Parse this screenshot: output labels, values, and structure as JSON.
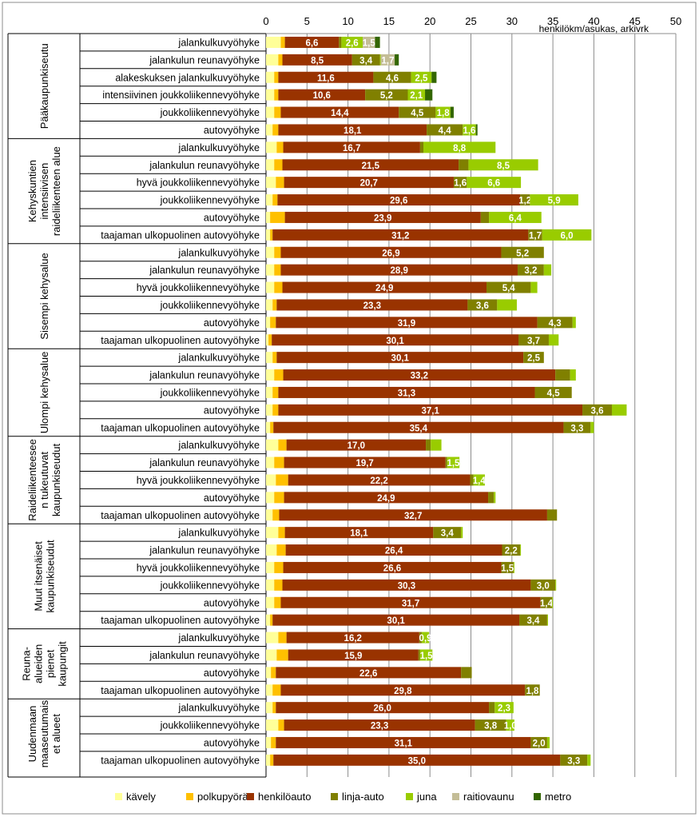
{
  "chart_data": {
    "type": "bar",
    "orientation": "horizontal",
    "stacked": true,
    "unit_label": "henkilökm/asukas, arkivrk",
    "xlim": [
      0,
      50
    ],
    "x_ticks": [
      0,
      5,
      10,
      15,
      20,
      25,
      30,
      35,
      40,
      45,
      50
    ],
    "grid": true,
    "legend_position": "bottom",
    "series": [
      {
        "key": "walk",
        "name": "kävely",
        "color": "#ffff99"
      },
      {
        "key": "bike",
        "name": "polkupyörä",
        "color": "#ffc000"
      },
      {
        "key": "car",
        "name": "henkilöauto",
        "color": "#993300"
      },
      {
        "key": "bus",
        "name": "linja-auto",
        "color": "#808000"
      },
      {
        "key": "train",
        "name": "juna",
        "color": "#99cc00"
      },
      {
        "key": "tram",
        "name": "raitiovaunu",
        "color": "#c4bd97"
      },
      {
        "key": "metro",
        "name": "metro",
        "color": "#336600"
      }
    ],
    "groups": [
      {
        "label_lines": [
          "Pääkaupunkiseutu"
        ],
        "rows": [
          {
            "label": "jalankulkuvyöhyke",
            "values": [
              1.8,
              0.5,
              6.6,
              0.3,
              2.6,
              1.5,
              0.6
            ],
            "labels": [
              "",
              "",
              "6,6",
              "",
              "2,6",
              "1,5",
              ""
            ]
          },
          {
            "label": "jalankulun reunavyöhyke",
            "values": [
              1.5,
              0.5,
              8.5,
              3.4,
              0.1,
              1.7,
              0.5
            ],
            "labels": [
              "",
              "",
              "8,5",
              "3,4",
              "",
              "1,7",
              ""
            ]
          },
          {
            "label": "alakeskuksen jalankulkuvyöhyke",
            "values": [
              1.0,
              0.5,
              11.6,
              4.6,
              2.5,
              0.0,
              0.6
            ],
            "labels": [
              "",
              "",
              "11,6",
              "4,6",
              "2,5",
              "",
              ""
            ]
          },
          {
            "label": "intensiivinen joukkoliikennevyöhyke",
            "values": [
              1.0,
              0.5,
              10.6,
              5.2,
              2.1,
              0.0,
              0.9
            ],
            "labels": [
              "",
              "",
              "10,6",
              "5,2",
              "2,1",
              "",
              ""
            ]
          },
          {
            "label": "joukkoliikennevyöhyke",
            "values": [
              1.0,
              0.8,
              14.4,
              4.5,
              1.8,
              0.0,
              0.4
            ],
            "labels": [
              "",
              "",
              "14,4",
              "4,5",
              "1,8",
              "",
              ""
            ]
          },
          {
            "label": "autovyöhyke",
            "values": [
              0.8,
              0.7,
              18.1,
              4.4,
              1.6,
              0.0,
              0.2
            ],
            "labels": [
              "",
              "",
              "18,1",
              "4,4",
              "1,6",
              "",
              ""
            ]
          }
        ]
      },
      {
        "label_lines": [
          "Kehyskuntien",
          "intensiivisen",
          "raideliikenteen alue"
        ],
        "rows": [
          {
            "label": "jalankulkuvyöhyke",
            "values": [
              1.3,
              0.8,
              16.7,
              0.4,
              8.8,
              0.0,
              0.0
            ],
            "labels": [
              "",
              "",
              "16,7",
              "",
              "8,8",
              "",
              ""
            ]
          },
          {
            "label": "jalankulun reunavyöhyke",
            "values": [
              1.0,
              1.0,
              21.5,
              1.2,
              8.5,
              0.0,
              0.0
            ],
            "labels": [
              "",
              "",
              "21,5",
              "",
              "8,5",
              "",
              ""
            ]
          },
          {
            "label": "hyvä joukkoliikennevyöhyke",
            "values": [
              1.2,
              1.0,
              20.7,
              1.6,
              6.6,
              0.0,
              0.0
            ],
            "labels": [
              "",
              "",
              "20,7",
              "1,6",
              "6,6",
              "",
              ""
            ]
          },
          {
            "label": "joukkoliikennevyöhyke",
            "values": [
              0.8,
              0.6,
              29.6,
              1.2,
              5.9,
              0.0,
              0.0
            ],
            "labels": [
              "",
              "",
              "29,6",
              "1,2",
              "5,9",
              "",
              ""
            ]
          },
          {
            "label": "autovyöhyke",
            "values": [
              0.5,
              1.8,
              23.9,
              1.0,
              6.4,
              0.0,
              0.0
            ],
            "labels": [
              "",
              "",
              "23,9",
              "",
              "6,4",
              "",
              ""
            ]
          },
          {
            "label": "taajaman ulkopuolinen autovyöhyke",
            "values": [
              0.5,
              0.3,
              31.2,
              1.7,
              6.0,
              0.0,
              0.0
            ],
            "labels": [
              "",
              "",
              "31,2",
              "1,7",
              "6,0",
              "",
              ""
            ]
          }
        ]
      },
      {
        "label_lines": [
          "Sisempi kehysalue"
        ],
        "rows": [
          {
            "label": "jalankulkuvyöhyke",
            "values": [
              1.0,
              0.8,
              26.9,
              5.2,
              0.0,
              0.0,
              0.0
            ],
            "labels": [
              "",
              "",
              "26,9",
              "5,2",
              "",
              "",
              ""
            ]
          },
          {
            "label": "jalankulun reunavyöhyke",
            "values": [
              1.0,
              0.8,
              28.9,
              3.2,
              0.9,
              0.0,
              0.0
            ],
            "labels": [
              "",
              "",
              "28,9",
              "3,2",
              "",
              "",
              ""
            ]
          },
          {
            "label": "hyvä joukkoliikennevyöhyke",
            "values": [
              1.0,
              1.0,
              24.9,
              5.4,
              0.8,
              0.0,
              0.0
            ],
            "labels": [
              "",
              "",
              "24,9",
              "5,4",
              "",
              "",
              ""
            ]
          },
          {
            "label": "joukkoliikennevyöhyke",
            "values": [
              0.8,
              0.5,
              23.3,
              3.6,
              2.4,
              0.0,
              0.0
            ],
            "labels": [
              "",
              "",
              "23,3",
              "3,6",
              "",
              "",
              ""
            ]
          },
          {
            "label": "autovyöhyke",
            "values": [
              0.5,
              0.7,
              31.9,
              4.3,
              0.4,
              0.0,
              0.0
            ],
            "labels": [
              "",
              "",
              "31,9",
              "4,3",
              "",
              "",
              ""
            ]
          },
          {
            "label": "taajaman ulkopuolinen autovyöhyke",
            "values": [
              0.3,
              0.4,
              30.1,
              3.7,
              1.2,
              0.0,
              0.0
            ],
            "labels": [
              "",
              "",
              "30,1",
              "3,7",
              "",
              "",
              ""
            ]
          }
        ]
      },
      {
        "label_lines": [
          "Ulompi kehysalue"
        ],
        "rows": [
          {
            "label": "jalankulkuvyöhyke",
            "values": [
              0.8,
              0.5,
              30.1,
              2.5,
              0.0,
              0.0,
              0.0
            ],
            "labels": [
              "",
              "",
              "30,1",
              "2,5",
              "",
              "",
              ""
            ]
          },
          {
            "label": "jalankulun reunavyöhyke",
            "values": [
              1.0,
              1.1,
              33.2,
              1.8,
              0.7,
              0.0,
              0.0
            ],
            "labels": [
              "",
              "",
              "33,2",
              "",
              "",
              "",
              ""
            ]
          },
          {
            "label": "joukkoliikennevyöhyke",
            "values": [
              0.8,
              0.7,
              31.3,
              4.5,
              0.0,
              0.0,
              0.0
            ],
            "labels": [
              "",
              "",
              "31,3",
              "4,5",
              "",
              "",
              ""
            ]
          },
          {
            "label": "autovyöhyke",
            "values": [
              0.8,
              0.7,
              37.1,
              3.6,
              1.8,
              0.0,
              0.0
            ],
            "labels": [
              "",
              "",
              "37,1",
              "3,6",
              "",
              "",
              ""
            ]
          },
          {
            "label": "taajaman ulkopuolinen autovyöhyke",
            "values": [
              0.5,
              0.4,
              35.4,
              3.3,
              0.4,
              0.0,
              0.0
            ],
            "labels": [
              "",
              "",
              "35,4",
              "3,3",
              "",
              "",
              ""
            ]
          }
        ]
      },
      {
        "label_lines": [
          "Raideliikenteesee",
          "n tukeutuvat",
          "kaupunkiseudut"
        ],
        "rows": [
          {
            "label": "jalankulkuvyöhyke",
            "values": [
              1.5,
              1.0,
              17.0,
              0.6,
              1.3,
              0.0,
              0.0
            ],
            "labels": [
              "",
              "",
              "17,0",
              "",
              "",
              "",
              ""
            ]
          },
          {
            "label": "jalankulun reunavyöhyke",
            "values": [
              1.0,
              1.2,
              19.7,
              0.2,
              1.5,
              0.0,
              0.0
            ],
            "labels": [
              "",
              "",
              "19,7",
              "",
              "1,5",
              "",
              ""
            ]
          },
          {
            "label": "hyvä joukkoliikennevyöhyke",
            "values": [
              1.2,
              1.5,
              22.2,
              0.4,
              1.4,
              0.0,
              0.0
            ],
            "labels": [
              "",
              "",
              "22,2",
              "",
              "1,4",
              "",
              ""
            ]
          },
          {
            "label": "autovyöhyke",
            "values": [
              1.0,
              1.2,
              24.9,
              0.7,
              0.2,
              0.0,
              0.0
            ],
            "labels": [
              "",
              "",
              "24,9",
              "",
              "",
              "",
              ""
            ]
          },
          {
            "label": "taajaman ulkopuolinen autovyöhyke",
            "values": [
              0.8,
              0.8,
              32.7,
              1.2,
              0.0,
              0.0,
              0.0
            ],
            "labels": [
              "",
              "",
              "32,7",
              "",
              "",
              "",
              ""
            ]
          }
        ]
      },
      {
        "label_lines": [
          "Muut itsenäiset",
          "kaupunkiseudut"
        ],
        "rows": [
          {
            "label": "jalankulkuvyöhyke",
            "values": [
              1.5,
              0.8,
              18.1,
              3.4,
              0.2,
              0.0,
              0.0
            ],
            "labels": [
              "",
              "",
              "18,1",
              "3,4",
              "",
              "",
              ""
            ]
          },
          {
            "label": "jalankulun reunavyöhyke",
            "values": [
              1.3,
              1.1,
              26.4,
              2.2,
              0.1,
              0.0,
              0.0
            ],
            "labels": [
              "",
              "",
              "26,4",
              "2,2",
              "",
              "",
              ""
            ]
          },
          {
            "label": "hyvä joukkoliikennevyöhyke",
            "values": [
              1.0,
              1.1,
              26.6,
              1.5,
              0.1,
              0.0,
              0.0
            ],
            "labels": [
              "",
              "",
              "26,6",
              "1,5",
              "",
              "",
              ""
            ]
          },
          {
            "label": "joukkoliikennevyöhyke",
            "values": [
              1.0,
              1.0,
              30.3,
              3.0,
              0.1,
              0.0,
              0.0
            ],
            "labels": [
              "",
              "",
              "30,3",
              "3,0",
              "",
              "",
              ""
            ]
          },
          {
            "label": "autovyöhyke",
            "values": [
              1.0,
              0.8,
              31.7,
              1.4,
              0.1,
              0.0,
              0.0
            ],
            "labels": [
              "",
              "",
              "31,7",
              "1,4",
              "",
              "",
              ""
            ]
          },
          {
            "label": "taajaman ulkopuolinen autovyöhyke",
            "values": [
              0.5,
              0.3,
              30.1,
              3.4,
              0.1,
              0.0,
              0.0
            ],
            "labels": [
              "",
              "",
              "30,1",
              "3,4",
              "",
              "",
              ""
            ]
          }
        ]
      },
      {
        "label_lines": [
          "Reuna-",
          "alueiden",
          "pienet",
          "kaupungit"
        ],
        "rows": [
          {
            "label": "jalankulkuvyöhyke",
            "values": [
              1.5,
              1.0,
              16.2,
              0.3,
              0.9,
              0.0,
              0.0
            ],
            "labels": [
              "",
              "",
              "16,2",
              "",
              "0,9",
              "",
              ""
            ]
          },
          {
            "label": "jalankulun reunavyöhyke",
            "values": [
              1.3,
              1.4,
              15.9,
              0.2,
              1.5,
              0.0,
              0.0
            ],
            "labels": [
              "",
              "",
              "15,9",
              "",
              "1,5",
              "",
              ""
            ]
          },
          {
            "label": "autovyöhyke",
            "values": [
              0.6,
              0.6,
              22.6,
              1.3,
              0.0,
              0.0,
              0.0
            ],
            "labels": [
              "",
              "",
              "22,6",
              "",
              "",
              "",
              ""
            ]
          },
          {
            "label": "taajaman ulkopuolinen autovyöhyke",
            "values": [
              0.8,
              1.0,
              29.8,
              1.8,
              0.0,
              0.0,
              0.0
            ],
            "labels": [
              "",
              "",
              "29,8",
              "1,8",
              "",
              "",
              ""
            ]
          }
        ]
      },
      {
        "label_lines": [
          "Uudenmaan",
          "maaseutumais",
          "et alueet"
        ],
        "rows": [
          {
            "label": "jalankulkuvyöhyke",
            "values": [
              0.8,
              0.4,
              26.0,
              0.7,
              2.3,
              0.0,
              0.0
            ],
            "labels": [
              "",
              "",
              "26,0",
              "",
              "2,3",
              "",
              ""
            ]
          },
          {
            "label": "joukkoliikennevyöhyke",
            "values": [
              1.5,
              0.7,
              23.3,
              3.8,
              1.0,
              0.0,
              0.0
            ],
            "labels": [
              "",
              "",
              "23,3",
              "3,8",
              "1,0",
              "",
              ""
            ]
          },
          {
            "label": "autovyöhyke",
            "values": [
              0.6,
              0.6,
              31.1,
              2.0,
              0.3,
              0.0,
              0.0
            ],
            "labels": [
              "",
              "",
              "31,1",
              "2,0",
              "",
              "",
              ""
            ]
          },
          {
            "label": "taajaman ulkopuolinen autovyöhyke",
            "values": [
              0.5,
              0.4,
              35.0,
              3.3,
              0.4,
              0.0,
              0.0
            ],
            "labels": [
              "",
              "",
              "35,0",
              "3,3",
              "",
              "",
              ""
            ]
          }
        ]
      }
    ]
  }
}
